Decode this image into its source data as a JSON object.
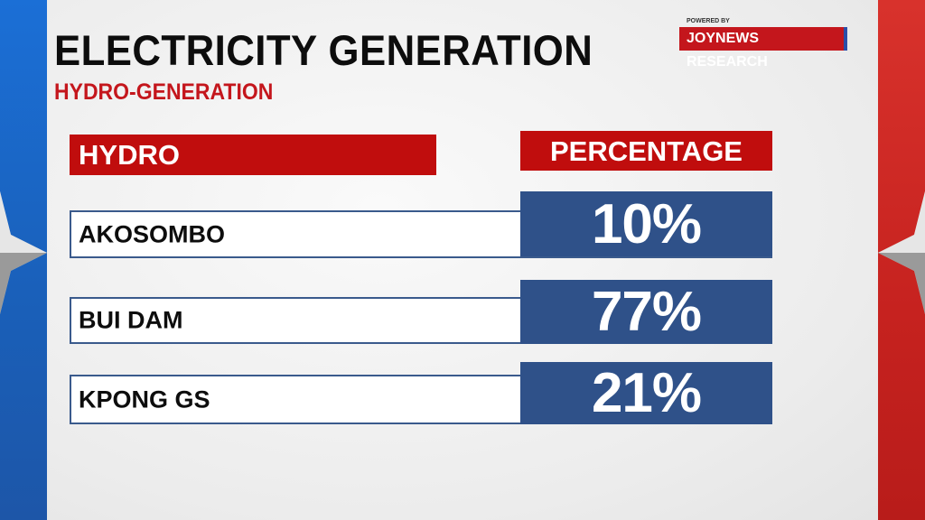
{
  "title": "ELECTRICITY GENERATION",
  "subtitle": "HYDRO-GENERATION",
  "logo": {
    "powered_by": "POWERED BY",
    "brand": "JOYNEWS RESEARCH"
  },
  "colors": {
    "red": "#c00d0d",
    "blue": "#2f5189",
    "band_left": "#1b6fd6",
    "band_right": "#d8322c"
  },
  "chart_data": {
    "type": "table",
    "columns": [
      "HYDRO",
      "PERCENTAGE"
    ],
    "rows": [
      {
        "name": "AKOSOMBO",
        "value": "10%"
      },
      {
        "name": "BUI DAM",
        "value": "77%"
      },
      {
        "name": "KPONG GS",
        "value": "21%"
      }
    ]
  }
}
